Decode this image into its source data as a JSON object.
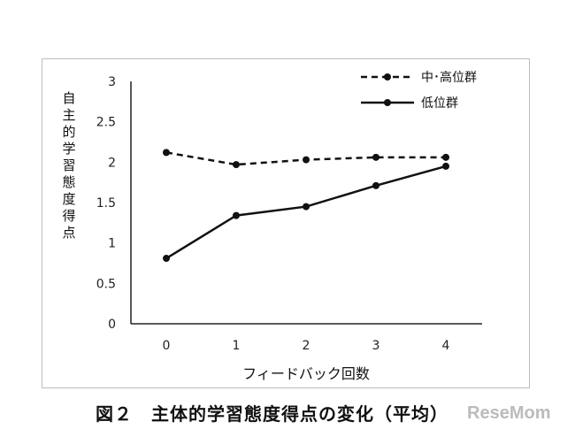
{
  "chart_data": {
    "type": "line",
    "title": "",
    "xlabel": "フィードバック回数",
    "ylabel": "自主的学習態度得点",
    "x": [
      0,
      1,
      2,
      3,
      4
    ],
    "xticks": [
      "0",
      "1",
      "2",
      "3",
      "4"
    ],
    "yticks": [
      "0",
      "0.5",
      "1",
      "1.5",
      "2",
      "2.5",
      "3"
    ],
    "ylim": [
      0,
      3
    ],
    "grid": false,
    "legend_position": "top-right",
    "series": [
      {
        "name": "中･高位群",
        "style": "dashed",
        "values": [
          2.12,
          1.97,
          2.03,
          2.06,
          2.06
        ]
      },
      {
        "name": "低位群",
        "style": "solid",
        "values": [
          0.81,
          1.34,
          1.45,
          1.71,
          1.95
        ]
      }
    ]
  },
  "caption": "図２　主体的学習態度得点の変化（平均）",
  "watermark": "ReseMom"
}
